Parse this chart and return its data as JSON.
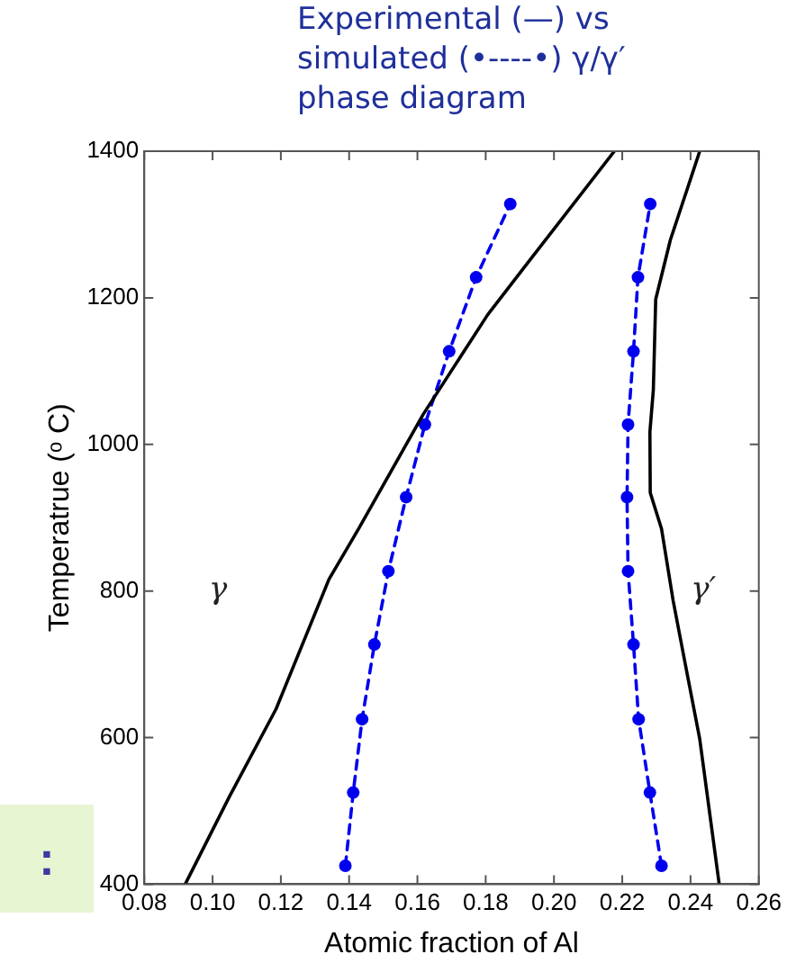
{
  "chart_data": {
    "type": "line",
    "title": "Experimental (—) vs simulated (•----•) γ/γ′ phase diagram",
    "xlabel": "Atomic fraction of Al",
    "ylabel": "Temperatrue (ᵒ C)",
    "xlim": [
      0.08,
      0.26
    ],
    "ylim": [
      400,
      1400
    ],
    "xticks": [
      {
        "value": 0.08,
        "label": "0.08"
      },
      {
        "value": 0.1,
        "label": "0.10"
      },
      {
        "value": 0.12,
        "label": "0.12"
      },
      {
        "value": 0.14,
        "label": "0.14"
      },
      {
        "value": 0.16,
        "label": "0.16"
      },
      {
        "value": 0.18,
        "label": "0.18"
      },
      {
        "value": 0.2,
        "label": "0.20"
      },
      {
        "value": 0.22,
        "label": "0.22"
      },
      {
        "value": 0.24,
        "label": "0.24"
      },
      {
        "value": 0.26,
        "label": "0.26"
      }
    ],
    "yticks": [
      400,
      600,
      800,
      1000,
      1200,
      1400
    ],
    "grid": false,
    "legend": false,
    "series": [
      {
        "color": "#000000",
        "marker": "none",
        "line_style": "solid",
        "x": [
          0.092,
          0.105,
          0.1186,
          0.1341,
          0.1428,
          0.1617,
          0.1806,
          0.1927,
          0.2177
        ],
        "values": [
          400,
          520,
          639,
          816,
          885,
          1041,
          1177,
          1250,
          1400
        ]
      },
      {
        "color": "#000000",
        "marker": "none",
        "line_style": "solid",
        "x": [
          0.2484,
          0.2427,
          0.2393,
          0.2349,
          0.2315,
          0.2282,
          0.2281,
          0.2291,
          0.2298,
          0.2341,
          0.2427
        ],
        "values": [
          400,
          598,
          680,
          787,
          885,
          934,
          1017,
          1074,
          1198,
          1279,
          1400
        ]
      },
      {
        "color": "#0000ee",
        "marker": "circle",
        "line_style": "dashed",
        "x": [
          0.1389,
          0.1412,
          0.1438,
          0.1474,
          0.1515,
          0.1567,
          0.1622,
          0.1693,
          0.1772,
          0.1872
        ],
        "values": [
          425,
          525,
          625,
          727,
          827,
          928,
          1027,
          1127,
          1228,
          1328
        ]
      },
      {
        "color": "#0000ee",
        "marker": "circle",
        "line_style": "dashed",
        "x": [
          0.2315,
          0.2281,
          0.2248,
          0.2233,
          0.2217,
          0.2214,
          0.2217,
          0.2233,
          0.2246,
          0.2282
        ],
        "values": [
          425,
          525,
          625,
          727,
          827,
          928,
          1027,
          1127,
          1228,
          1328
        ]
      }
    ],
    "annotations": [
      "γ",
      "γ′",
      ":"
    ]
  }
}
